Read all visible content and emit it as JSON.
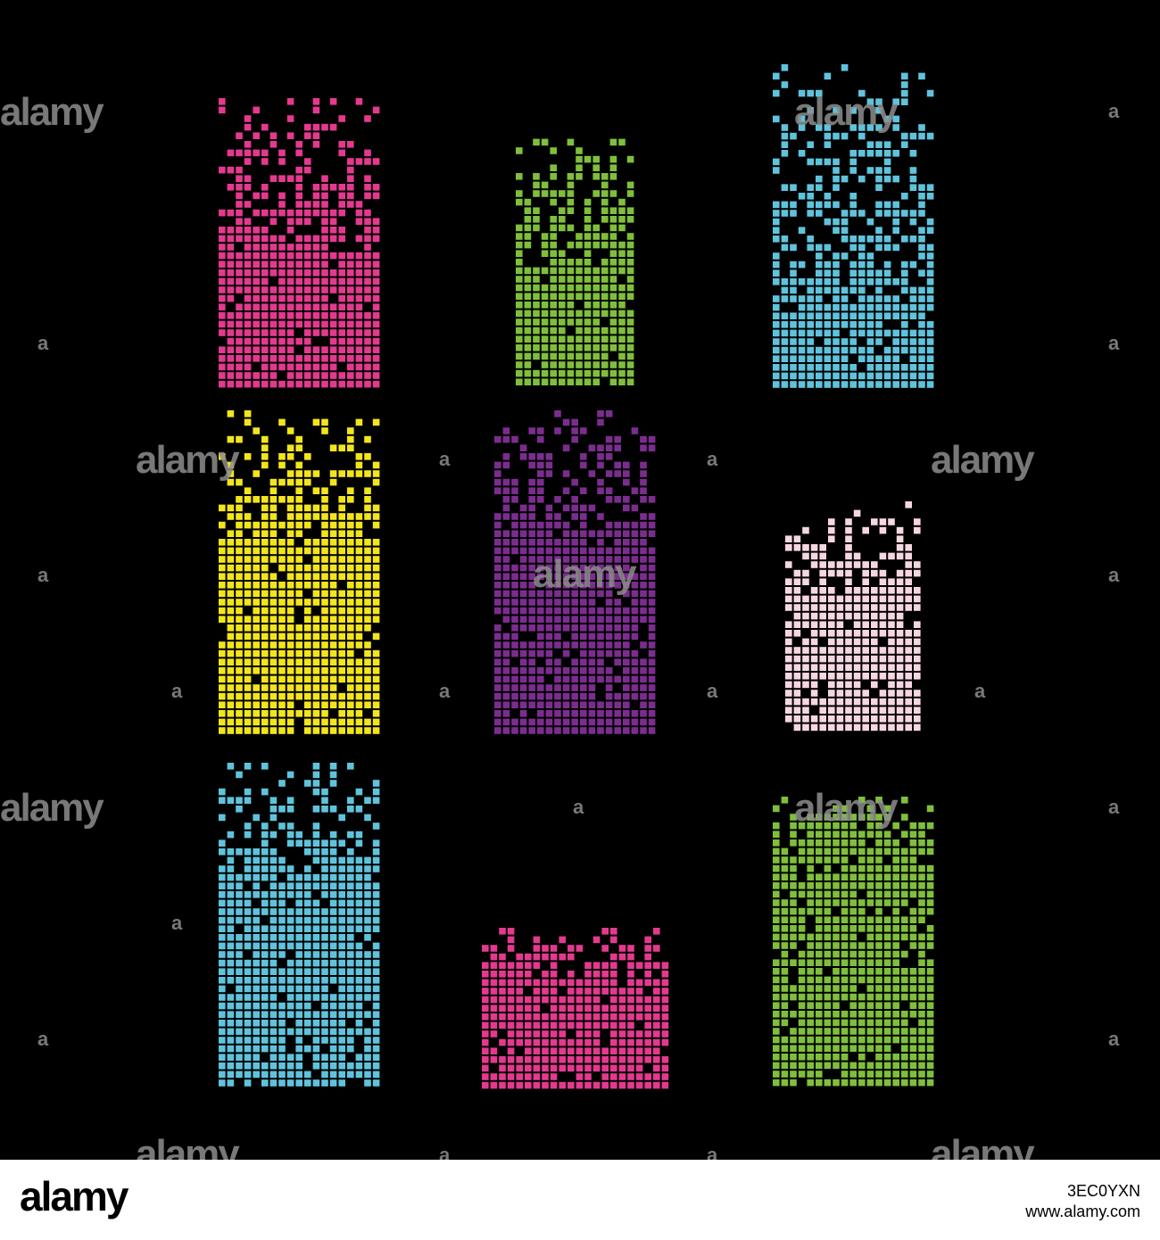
{
  "watermark": {
    "text": "alamy",
    "glyph": "a"
  },
  "footer": {
    "logo": "alamy",
    "image_id": "3EC0YXN",
    "site": "www.alamy.com"
  },
  "blocks": [
    {
      "name": "pink-top-left",
      "color": "#e4398f"
    },
    {
      "name": "green-top-center",
      "color": "#7fbf3b"
    },
    {
      "name": "cyan-top-right",
      "color": "#5fc3dc"
    },
    {
      "name": "yellow-mid-left",
      "color": "#f3e51c"
    },
    {
      "name": "purple-mid-center",
      "color": "#7b2d8e"
    },
    {
      "name": "lightpink-mid-right",
      "color": "#f6d6e2"
    },
    {
      "name": "cyan-bottom-left",
      "color": "#5fc3dc"
    },
    {
      "name": "pink-bottom-center",
      "color": "#e4398f"
    },
    {
      "name": "green-bottom-right",
      "color": "#7fbf3b"
    }
  ]
}
